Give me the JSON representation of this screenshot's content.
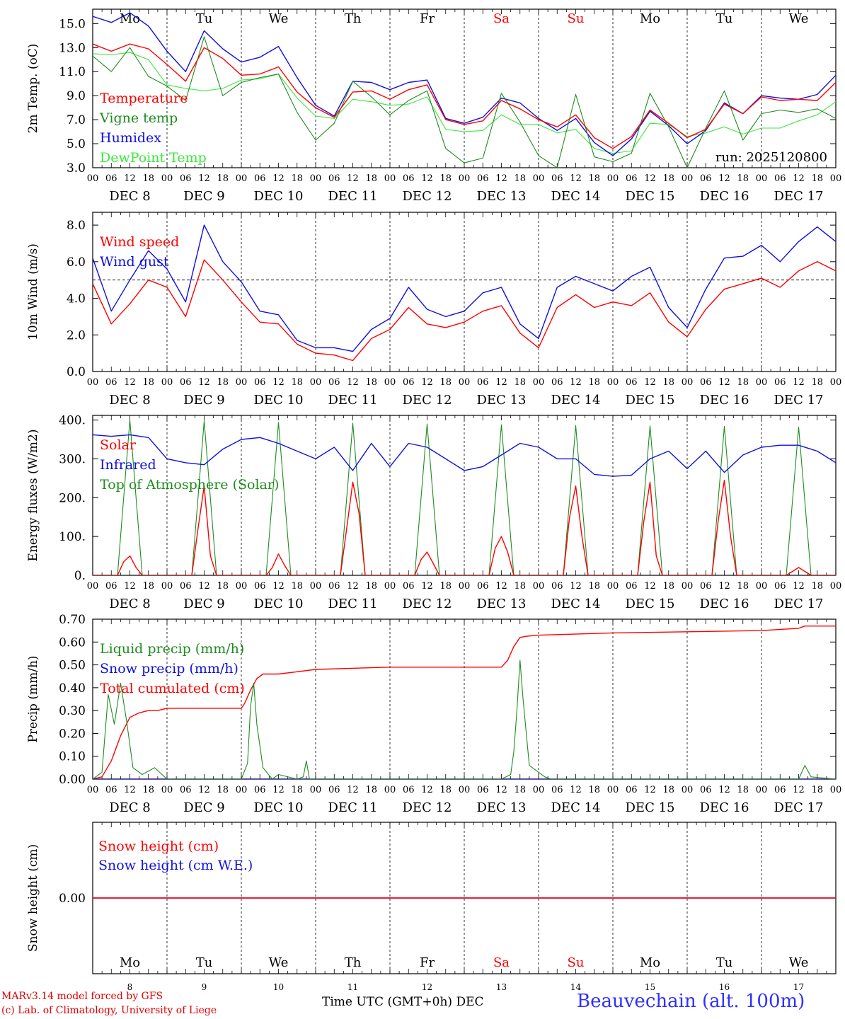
{
  "colors": {
    "red": "#ff0000",
    "green": "#1e8c1e",
    "blue": "#1010e0",
    "lightgreen": "#3ce83c",
    "axis": "#000000"
  },
  "days": [
    "Mo",
    "Tu",
    "We",
    "Th",
    "Fr",
    "Sa",
    "Su",
    "Mo",
    "Tu",
    "We"
  ],
  "weekend_days": [
    5,
    6
  ],
  "date_labels": [
    "DEC  8",
    "DEC  9",
    "DEC 10",
    "DEC 11",
    "DEC 12",
    "DEC 13",
    "DEC 14",
    "DEC 15",
    "DEC 16",
    "DEC 17"
  ],
  "day_numbers": [
    "8",
    "9",
    "10",
    "11",
    "12",
    "13",
    "14",
    "15",
    "16",
    "17"
  ],
  "hour_labels": [
    "00",
    "06",
    "12",
    "18"
  ],
  "final_hour_label": "00",
  "run_label": "run: 2025120800",
  "footer": {
    "credit_line1": "MARv3.14 model forced by GFS",
    "credit_line2": "(c) Lab. of Climatology, University of Liege",
    "xaxis_title": "Time UTC (GMT+0h) DEC",
    "station": "Beauvechain (alt. 100m)"
  },
  "chart_data": [
    {
      "id": "temperature",
      "type": "line",
      "ylabel": "2m Temp. (oC)",
      "ylim": [
        3.0,
        16.2
      ],
      "yticks": [
        "3.0",
        "5.0",
        "7.0",
        "9.0",
        "11.0",
        "13.0",
        "15.0"
      ],
      "ytick_values": [
        3,
        5,
        7,
        9,
        11,
        13,
        15
      ],
      "reference_line": null,
      "x_hours": [
        0,
        6,
        12,
        18,
        24,
        30,
        36,
        42,
        48,
        54,
        60,
        66,
        72,
        78,
        84,
        90,
        96,
        102,
        108,
        114,
        120,
        126,
        132,
        138,
        144,
        150,
        156,
        162,
        168,
        174,
        180,
        186,
        192,
        198,
        204,
        210,
        216,
        222,
        228,
        234,
        240
      ],
      "series": [
        {
          "name": "Temperature",
          "color": "red",
          "values": [
            13.3,
            12.7,
            13.3,
            12.9,
            11.6,
            10.2,
            13.0,
            12.1,
            10.7,
            10.8,
            11.4,
            9.3,
            8.0,
            7.2,
            9.3,
            9.4,
            8.7,
            9.5,
            9.9,
            7.0,
            6.6,
            6.9,
            8.6,
            7.9,
            7.0,
            6.4,
            7.4,
            5.5,
            4.6,
            5.6,
            7.8,
            6.7,
            5.5,
            6.2,
            8.3,
            7.5,
            8.9,
            8.6,
            8.7,
            8.6,
            10.1
          ]
        },
        {
          "name": "Vigne temp",
          "color": "green",
          "values": [
            12.3,
            11.0,
            13.0,
            10.6,
            9.8,
            8.6,
            13.9,
            9.0,
            10.1,
            10.5,
            10.8,
            7.6,
            5.3,
            6.7,
            10.2,
            8.9,
            7.4,
            8.6,
            9.4,
            4.6,
            3.4,
            3.8,
            9.2,
            6.8,
            4.0,
            3.0,
            9.1,
            3.9,
            3.5,
            4.2,
            9.2,
            6.4,
            3.0,
            6.3,
            9.4,
            5.3,
            7.5,
            7.8,
            7.6,
            7.9,
            7.1
          ]
        },
        {
          "name": "Humidex",
          "color": "blue",
          "values": [
            15.6,
            15.1,
            15.9,
            14.8,
            12.7,
            11.0,
            14.4,
            12.9,
            11.8,
            12.2,
            13.1,
            10.5,
            8.2,
            7.3,
            10.2,
            10.1,
            9.5,
            10.1,
            10.3,
            7.1,
            6.7,
            7.2,
            8.8,
            8.4,
            7.1,
            6.1,
            7.1,
            5.1,
            4.0,
            5.4,
            7.7,
            6.5,
            5.0,
            6.1,
            8.4,
            7.5,
            9.0,
            8.8,
            8.7,
            9.1,
            10.7
          ]
        },
        {
          "name": "DewPoint Temp",
          "color": "lightgreen",
          "values": [
            12.5,
            12.4,
            12.6,
            12.0,
            9.9,
            9.6,
            9.4,
            9.6,
            10.3,
            10.4,
            10.8,
            8.8,
            7.3,
            7.1,
            8.7,
            8.5,
            8.2,
            8.3,
            8.9,
            6.2,
            6.0,
            6.1,
            7.4,
            6.6,
            6.6,
            5.9,
            6.2,
            4.6,
            4.2,
            4.4,
            6.7,
            6.6,
            5.6,
            5.9,
            6.4,
            5.8,
            6.3,
            6.3,
            6.9,
            7.4,
            8.5
          ]
        }
      ]
    },
    {
      "id": "wind",
      "type": "line",
      "ylabel": "10m Wind (m/s)",
      "ylim": [
        0.0,
        8.7
      ],
      "yticks": [
        "0.0",
        "2.0",
        "4.0",
        "6.0",
        "8.0"
      ],
      "ytick_values": [
        0,
        2,
        4,
        6,
        8
      ],
      "reference_line": 5.0,
      "x_hours": [
        0,
        6,
        12,
        18,
        24,
        30,
        36,
        42,
        48,
        54,
        60,
        66,
        72,
        78,
        84,
        90,
        96,
        102,
        108,
        114,
        120,
        126,
        132,
        138,
        144,
        150,
        156,
        162,
        168,
        174,
        180,
        186,
        192,
        198,
        204,
        210,
        216,
        222,
        228,
        234,
        240
      ],
      "series": [
        {
          "name": "Wind speed",
          "color": "red",
          "values": [
            4.8,
            2.6,
            3.7,
            5.0,
            4.6,
            3.0,
            6.1,
            5.0,
            3.8,
            2.7,
            2.6,
            1.5,
            1.0,
            0.9,
            0.6,
            1.8,
            2.3,
            3.5,
            2.6,
            2.4,
            2.7,
            3.3,
            3.6,
            2.1,
            1.3,
            3.5,
            4.2,
            3.5,
            3.8,
            3.6,
            4.3,
            2.7,
            1.9,
            3.4,
            4.5,
            4.8,
            5.1,
            4.6,
            5.5,
            6.0,
            5.5
          ]
        },
        {
          "name": "Wind gust",
          "color": "blue",
          "values": [
            6.2,
            3.3,
            5.0,
            6.6,
            5.6,
            3.8,
            8.0,
            6.0,
            4.9,
            3.3,
            3.1,
            1.7,
            1.3,
            1.3,
            1.1,
            2.3,
            2.9,
            4.6,
            3.4,
            3.0,
            3.3,
            4.3,
            4.6,
            2.6,
            1.8,
            4.6,
            5.2,
            4.8,
            4.4,
            5.2,
            5.7,
            3.5,
            2.4,
            4.5,
            6.2,
            6.3,
            6.9,
            6.0,
            7.1,
            7.9,
            7.1
          ]
        }
      ]
    },
    {
      "id": "energy",
      "type": "line",
      "ylabel": "Energy fluxes (W/m2)",
      "ylim": [
        0,
        412
      ],
      "yticks": [
        "0.",
        "100.",
        "200.",
        "300.",
        "400."
      ],
      "ytick_values": [
        0,
        100,
        200,
        300,
        400
      ],
      "reference_line": null,
      "series": [
        {
          "name": "Solar",
          "color": "red",
          "x_hours": [
            0,
            8,
            10,
            12,
            14,
            16,
            24,
            32,
            34,
            36,
            38,
            40,
            48,
            56,
            58,
            60,
            62,
            64,
            72,
            80,
            82,
            84,
            86,
            88,
            96,
            104,
            106,
            108,
            110,
            112,
            120,
            128,
            130,
            132,
            134,
            136,
            144,
            152,
            154,
            156,
            158,
            160,
            168,
            176,
            178,
            180,
            182,
            184,
            192,
            200,
            202,
            204,
            206,
            208,
            216,
            224,
            226,
            228,
            230,
            232,
            240
          ],
          "values": [
            0,
            0,
            35,
            50,
            20,
            0,
            0,
            0,
            120,
            230,
            50,
            0,
            0,
            0,
            20,
            55,
            25,
            0,
            0,
            0,
            120,
            240,
            160,
            0,
            0,
            0,
            40,
            60,
            30,
            0,
            0,
            0,
            70,
            100,
            60,
            0,
            0,
            0,
            150,
            230,
            100,
            0,
            0,
            0,
            140,
            240,
            50,
            0,
            0,
            0,
            140,
            245,
            100,
            0,
            0,
            0,
            10,
            20,
            10,
            0,
            0
          ]
        },
        {
          "name": "Infrared",
          "color": "blue",
          "x_hours": [
            0,
            6,
            12,
            18,
            24,
            30,
            36,
            42,
            48,
            54,
            60,
            66,
            72,
            78,
            84,
            90,
            96,
            102,
            108,
            114,
            120,
            126,
            132,
            138,
            144,
            150,
            156,
            162,
            168,
            174,
            180,
            186,
            192,
            198,
            204,
            210,
            216,
            222,
            228,
            234,
            240
          ],
          "values": [
            362,
            358,
            362,
            355,
            300,
            290,
            285,
            325,
            350,
            355,
            340,
            320,
            300,
            330,
            270,
            340,
            280,
            340,
            330,
            300,
            270,
            280,
            310,
            340,
            330,
            300,
            300,
            260,
            255,
            258,
            300,
            320,
            275,
            320,
            265,
            310,
            330,
            335,
            335,
            320,
            290
          ]
        },
        {
          "name": "Top of Atmosphere (Solar)",
          "color": "green",
          "x_hours": [
            0,
            8,
            12,
            16,
            24,
            32,
            36,
            40,
            48,
            56,
            60,
            64,
            72,
            80,
            84,
            88,
            96,
            104,
            108,
            112,
            120,
            128,
            132,
            136,
            144,
            152,
            156,
            160,
            168,
            176,
            180,
            184,
            192,
            200,
            204,
            208,
            216,
            224,
            228,
            232,
            240
          ],
          "values": [
            0,
            0,
            400,
            0,
            0,
            0,
            398,
            0,
            0,
            0,
            394,
            0,
            0,
            0,
            392,
            0,
            0,
            0,
            390,
            0,
            0,
            0,
            388,
            0,
            0,
            0,
            386,
            0,
            0,
            0,
            385,
            0,
            0,
            0,
            384,
            0,
            0,
            0,
            382,
            0,
            0
          ]
        }
      ]
    },
    {
      "id": "precip",
      "type": "line",
      "ylabel": "Precip (mm/h)",
      "ylim": [
        0.0,
        0.7
      ],
      "yticks": [
        "0.00",
        "0.10",
        "0.20",
        "0.30",
        "0.40",
        "0.50",
        "0.60",
        "0.70"
      ],
      "ytick_values": [
        0,
        0.1,
        0.2,
        0.3,
        0.4,
        0.5,
        0.6,
        0.7
      ],
      "reference_line": null,
      "series": [
        {
          "name": "Liquid precip (mm/h)",
          "color": "green",
          "x_hours": [
            0,
            3,
            5,
            7,
            9,
            11,
            13,
            16,
            20,
            24,
            48,
            50,
            51,
            52,
            53,
            55,
            58,
            60,
            66,
            68,
            69,
            70,
            72,
            96,
            120,
            132,
            135,
            136,
            137,
            138,
            139,
            141,
            144,
            146,
            148,
            168,
            192,
            216,
            228,
            230,
            232,
            240
          ],
          "values": [
            0,
            0.03,
            0.37,
            0.24,
            0.42,
            0.25,
            0.05,
            0.02,
            0.05,
            0,
            0,
            0.07,
            0.32,
            0.42,
            0.24,
            0.05,
            0,
            0.02,
            0,
            0.01,
            0.08,
            0,
            0,
            0,
            0,
            0,
            0.02,
            0.12,
            0.3,
            0.52,
            0.35,
            0.06,
            0.03,
            0.01,
            0,
            0,
            0,
            0,
            0,
            0.06,
            0.01,
            0
          ]
        },
        {
          "name": "Snow precip (mm/h)",
          "color": "blue",
          "x_hours": [
            0,
            240
          ],
          "values": [
            0,
            0
          ]
        },
        {
          "name": "Total cumulated (cm)",
          "color": "red",
          "x_hours": [
            0,
            3,
            6,
            9,
            12,
            15,
            18,
            21,
            24,
            48,
            49,
            51,
            53,
            55,
            57,
            60,
            66,
            72,
            96,
            132,
            134,
            136,
            138,
            140,
            144,
            168,
            192,
            216,
            228,
            230,
            240
          ],
          "values": [
            0,
            0.01,
            0.08,
            0.19,
            0.27,
            0.29,
            0.3,
            0.3,
            0.31,
            0.31,
            0.33,
            0.39,
            0.44,
            0.46,
            0.46,
            0.46,
            0.47,
            0.48,
            0.49,
            0.49,
            0.52,
            0.58,
            0.62,
            0.625,
            0.63,
            0.64,
            0.645,
            0.65,
            0.66,
            0.67,
            0.67
          ]
        }
      ]
    },
    {
      "id": "snow",
      "type": "line",
      "ylabel": "Snow height (cm)",
      "ylim": [
        -1,
        1
      ],
      "yticks": [
        "0.00"
      ],
      "ytick_values": [
        0
      ],
      "reference_line": null,
      "series": [
        {
          "name": "Snow height (cm)",
          "color": "red",
          "x_hours": [
            0,
            240
          ],
          "values": [
            0,
            0
          ]
        },
        {
          "name": "Snow height (cm W.E.)",
          "color": "blue",
          "x_hours": [
            0,
            240
          ],
          "values": [
            0,
            0
          ]
        }
      ]
    }
  ]
}
